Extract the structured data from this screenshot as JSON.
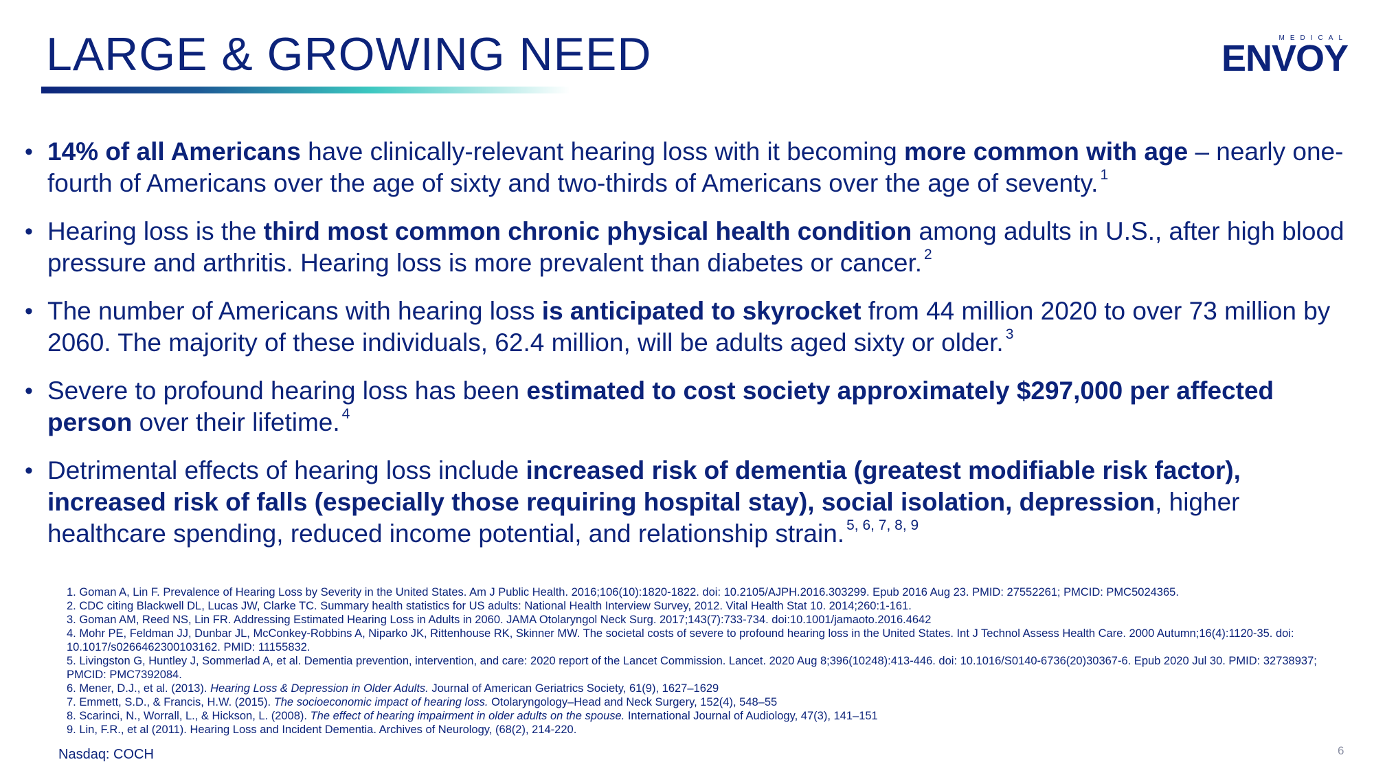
{
  "slide": {
    "title": "LARGE & GROWING NEED",
    "logo": {
      "small_text": "MEDICAL",
      "word": "ENVOY"
    },
    "bullets": [
      {
        "bold1": "14% of all Americans",
        "text1": " have clinically-relevant hearing loss with it becoming ",
        "bold2": "more common with age",
        "text2": " – nearly one-fourth of Americans over the age of sixty and two-thirds of Americans over the age of seventy.",
        "sup": "1"
      },
      {
        "text1": "Hearing loss is the ",
        "bold1": "third most common chronic physical health condition",
        "text2": " among adults in U.S., after high blood pressure and arthritis. Hearing loss is more prevalent than diabetes or cancer.",
        "sup": "2"
      },
      {
        "text1": "The number of Americans with hearing loss ",
        "bold1": "is anticipated to skyrocket",
        "text2": " from 44 million 2020 to over 73 million by 2060. The majority of these individuals, 62.4 million, will be adults aged sixty or older.",
        "sup": "3"
      },
      {
        "text1": "Severe to profound hearing loss has been ",
        "bold1": "estimated to cost society approximately $297,000 per affected person",
        "text2": " over their lifetime.",
        "sup": "4"
      },
      {
        "text1": "Detrimental effects of hearing loss include ",
        "bold1": "increased risk of dementia (greatest modifiable risk factor), increased risk of falls (especially those requiring hospital stay), social isolation, depression",
        "text2": ", higher healthcare spending, reduced income potential, and relationship strain.",
        "sup": "5, 6, 7, 8, 9"
      }
    ],
    "references": [
      {
        "pre": "1. Goman A, Lin F. Prevalence of Hearing Loss by Severity in the United States. Am J Public Health. 2016;106(10):1820-1822. doi: 10.2105/AJPH.2016.303299. Epub 2016 Aug 23. PMID: 27552261; PMCID: PMC5024365.",
        "ital": "",
        "post": ""
      },
      {
        "pre": "2. CDC citing Blackwell DL, Lucas JW, Clarke TC.  Summary health statistics for US adults:  National Health Interview Survey, 2012.  Vital Health Stat 10. 2014;260:1-161.",
        "ital": "",
        "post": ""
      },
      {
        "pre": "3. Goman AM, Reed NS, Lin FR. Addressing Estimated Hearing Loss in Adults in 2060. JAMA Otolaryngol Neck Surg. 2017;143(7):733-734. doi:10.1001/jamaoto.2016.4642",
        "ital": "",
        "post": ""
      },
      {
        "pre": "4. Mohr PE, Feldman JJ, Dunbar JL, McConkey-Robbins A, Niparko JK, Rittenhouse RK, Skinner MW. The societal costs of severe to profound hearing loss in the United States. Int J Technol Assess Health Care. 2000 Autumn;16(4):1120-35. doi: 10.1017/s0266462300103162. PMID: 11155832.",
        "ital": "",
        "post": ""
      },
      {
        "pre": "5. Livingston G, Huntley J, Sommerlad A, et al. Dementia prevention, intervention, and care: 2020 report of the Lancet Commission. Lancet. 2020 Aug 8;396(10248):413-446. doi: 10.1016/S0140-6736(20)30367-6. Epub 2020 Jul 30. PMID: 32738937; PMCID: PMC7392084.",
        "ital": "",
        "post": ""
      },
      {
        "pre": "6. Mener, D.J., et al. (2013). ",
        "ital": "Hearing Loss & Depression in Older Adults.",
        "post": " Journal of American Geriatrics Society, 61(9), 1627–1629"
      },
      {
        "pre": "7. Emmett, S.D., & Francis, H.W. (2015). ",
        "ital": "The socioeconomic impact of hearing loss.",
        "post": " Otolaryngology–Head and Neck Surgery, 152(4), 548–55"
      },
      {
        "pre": "8. Scarinci, N., Worrall, L., & Hickson, L. (2008). ",
        "ital": "The effect of hearing impairment in older adults on the spouse.",
        "post": " International Journal of Audiology, 47(3), 141–151"
      },
      {
        "pre": "9. Lin, F.R., et al (2011). Hearing Loss and Incident Dementia. Archives of Neurology, (68(2), 214-220.",
        "ital": "",
        "post": ""
      }
    ],
    "ticker": "Nasdaq: COCH",
    "page_number": "6",
    "bullet_symbol": "•"
  }
}
